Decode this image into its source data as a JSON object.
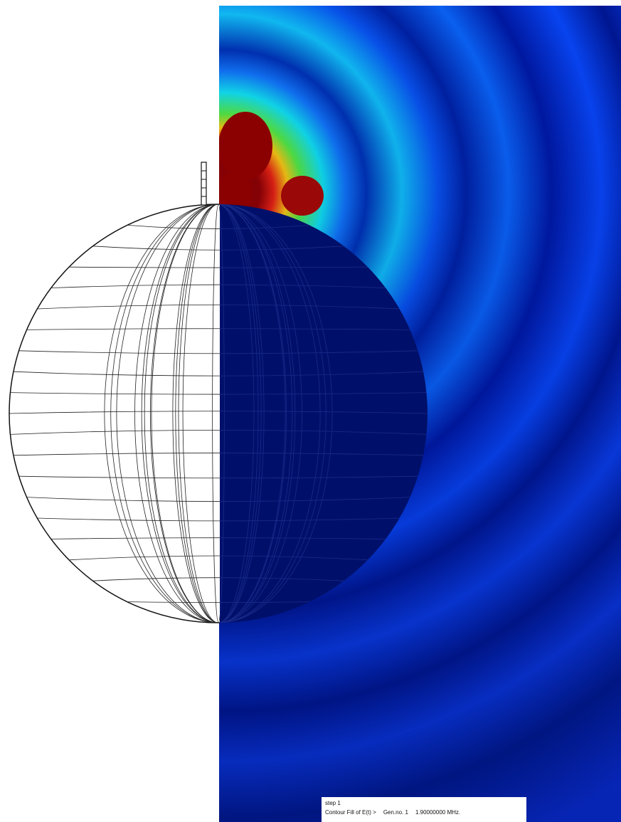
{
  "legend": {
    "step": "step 1",
    "result": "Contour Fill of E(t) >",
    "generator": "Gen.no. 1",
    "frequency": "1.90000000 MHz."
  }
}
